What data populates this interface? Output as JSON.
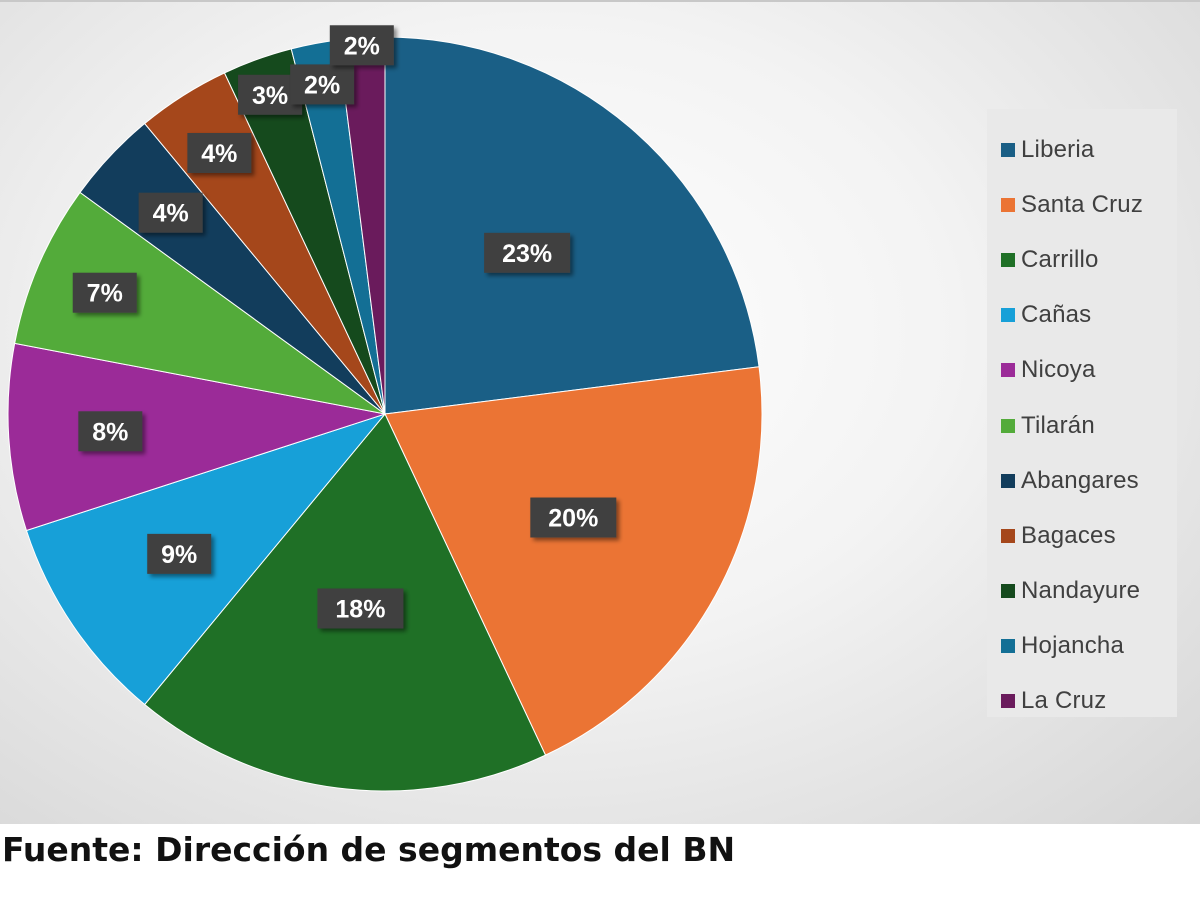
{
  "chart_data": {
    "type": "pie",
    "title": "",
    "categories": [
      "Liberia",
      "Santa Cruz",
      "Carrillo",
      "Cañas",
      "Nicoya",
      "Tilarán",
      "Abangares",
      "Bagaces",
      "Nandayure",
      "Hojancha",
      "La Cruz"
    ],
    "values": [
      23,
      20,
      18,
      9,
      8,
      7,
      4,
      4,
      3,
      2,
      2
    ],
    "labels": [
      "23%",
      "20%",
      "18%",
      "9%",
      "8%",
      "7%",
      "4%",
      "4%",
      "3%",
      "2%",
      "2%"
    ],
    "colors": [
      "#1a5f86",
      "#eb7434",
      "#1f7026",
      "#17a0d8",
      "#9b2b98",
      "#53ab3a",
      "#123d5c",
      "#a5471b",
      "#154a1d",
      "#136f95",
      "#6a1b5c"
    ],
    "legend_position": "right",
    "start_angle_deg": 0,
    "direction": "clockwise"
  },
  "caption": {
    "source": "Fuente: Dirección de segmentos del BN"
  }
}
